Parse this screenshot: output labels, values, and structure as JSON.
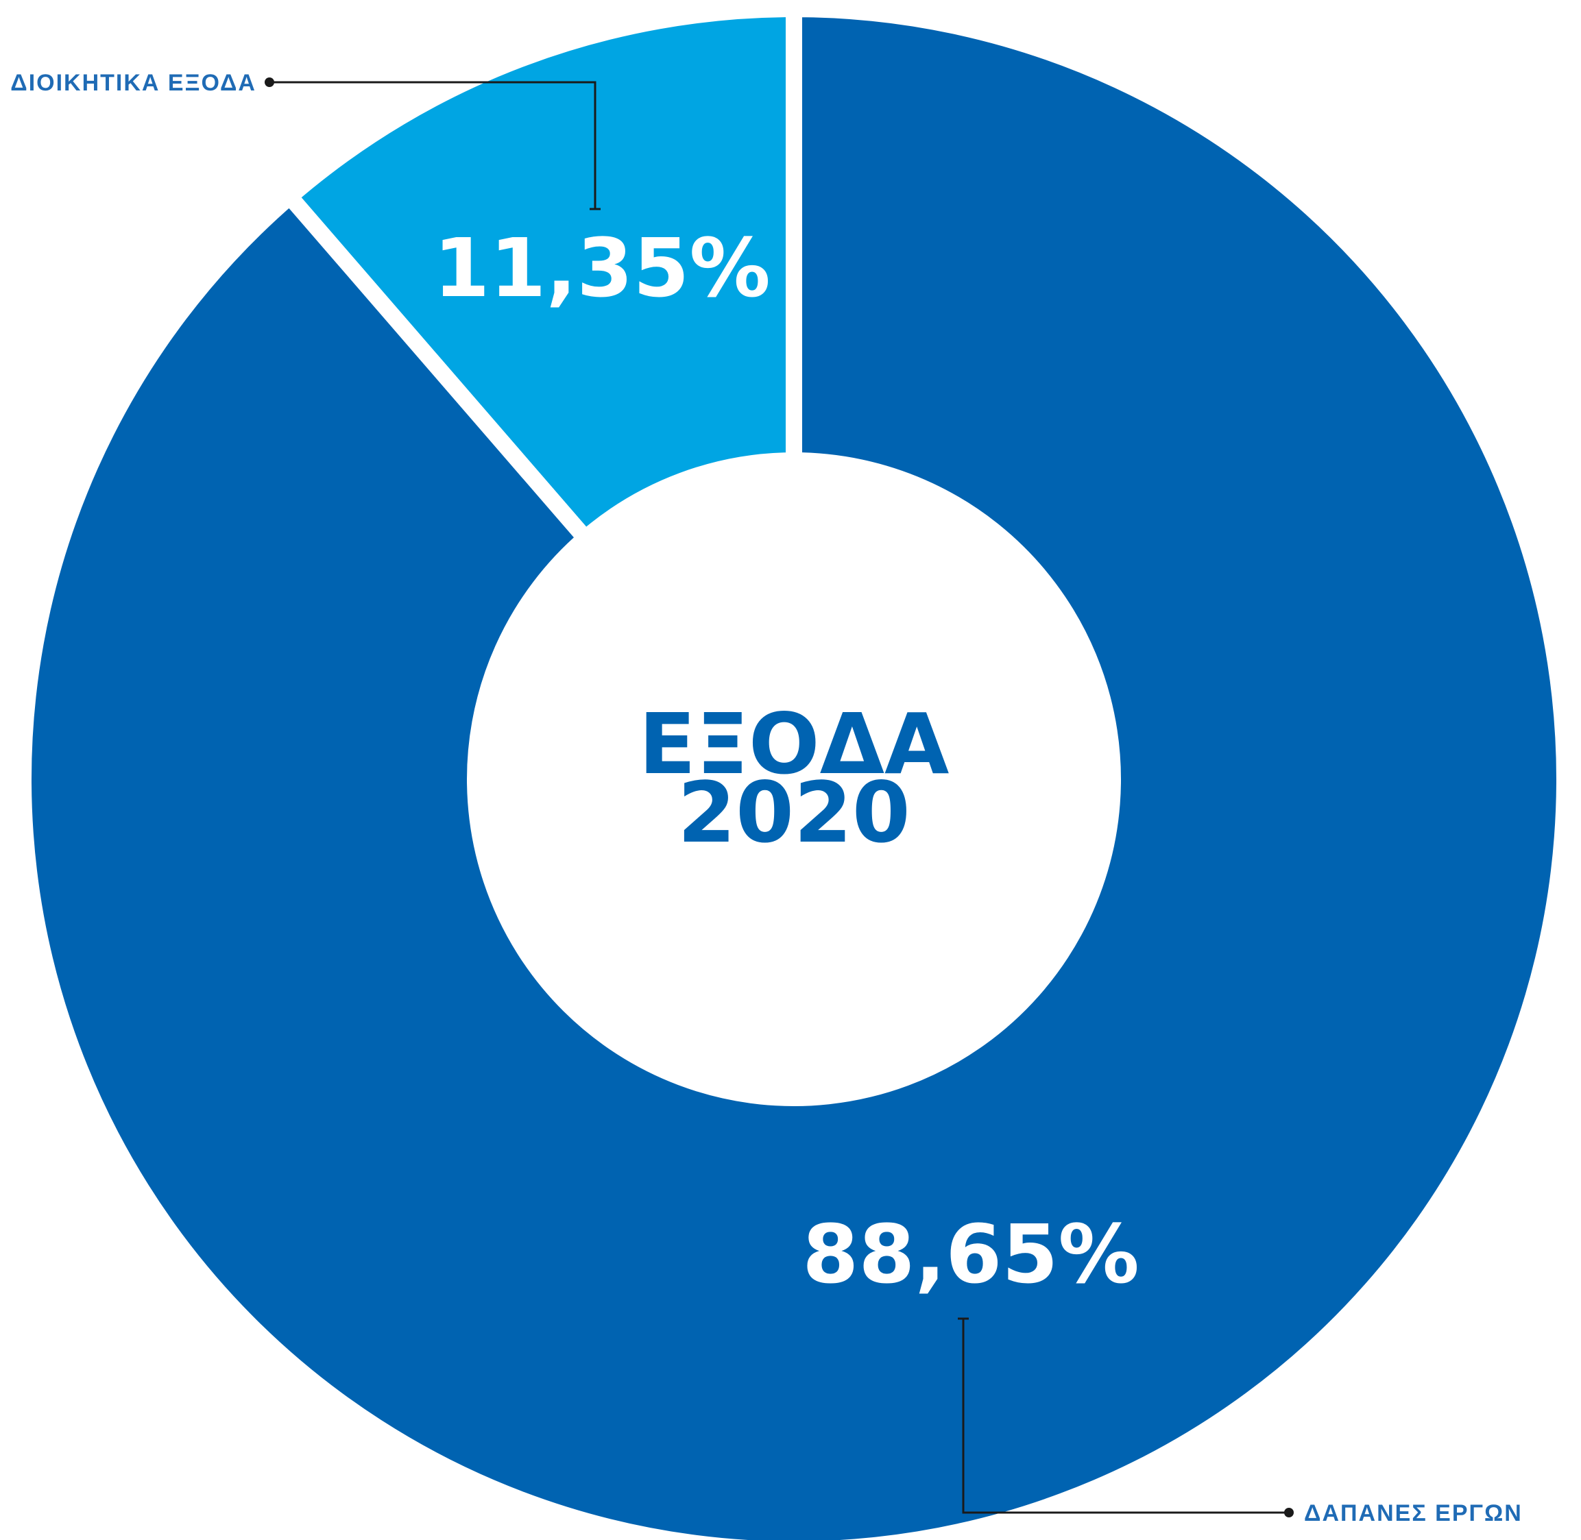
{
  "chart_data": {
    "type": "pie",
    "title": "ΕΞΟΔΑ",
    "subtitle": "2020",
    "slices": [
      {
        "label": "ΔΙΟΙΚΗΤΙΚΑ ΕΞΟΔΑ",
        "value": 11.35,
        "value_text": "11,35%",
        "color": "#00a5e3"
      },
      {
        "label": "ΔΑΠΑΝΕΣ ΕΡΓΩΝ",
        "value": 88.65,
        "value_text": "88,65%",
        "color": "#0063b1"
      }
    ],
    "center_text_color": "#0063b1",
    "callout_text_color": "#1f6bb5",
    "callout_line_color": "#1a1a1a",
    "donut": true
  }
}
